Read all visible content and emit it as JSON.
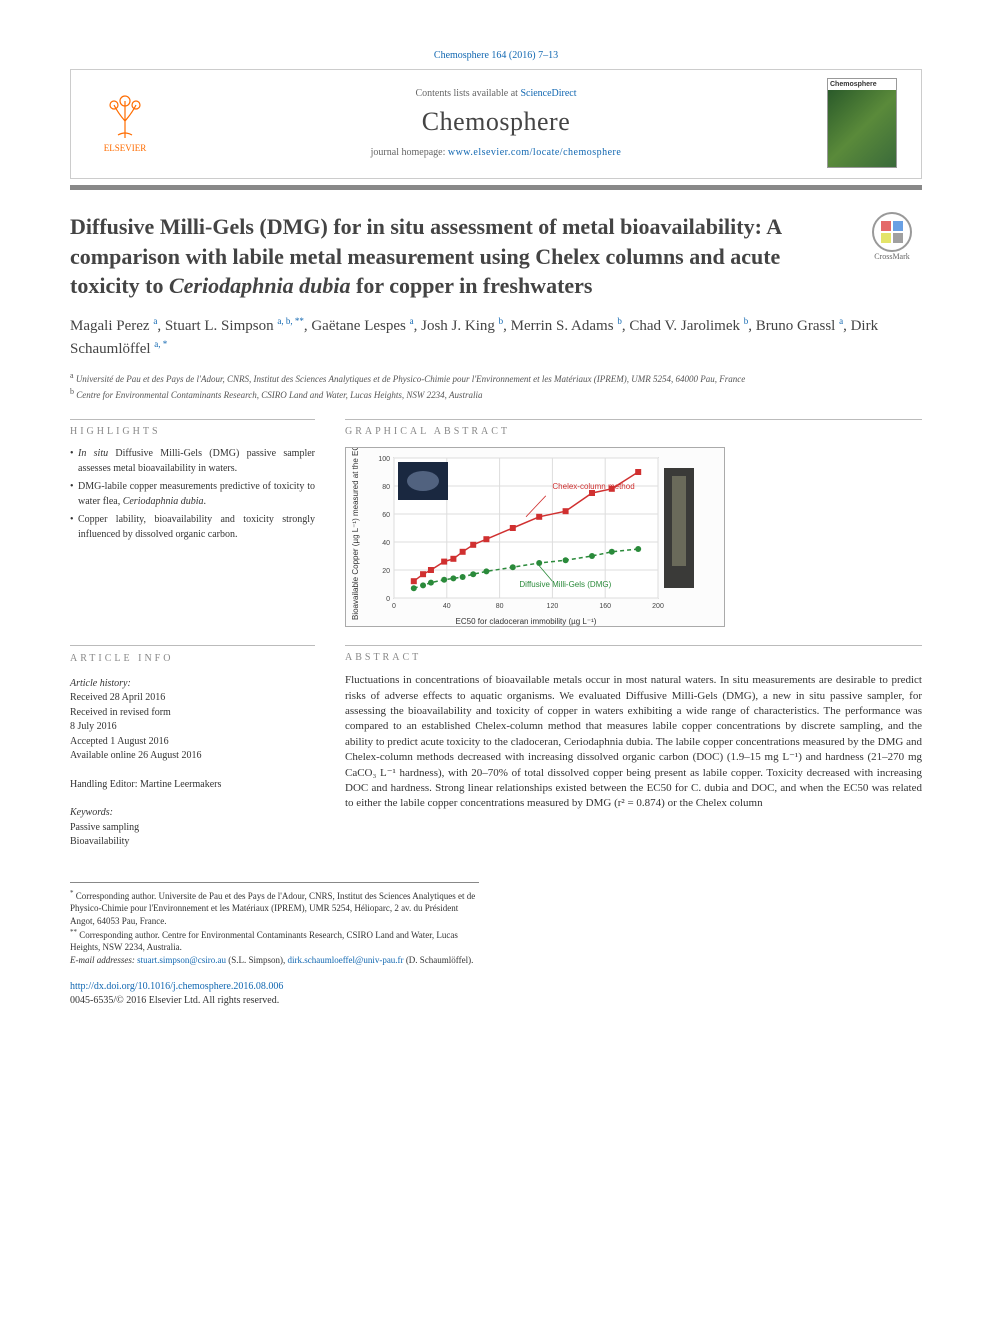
{
  "citation": {
    "journal": "Chemosphere",
    "vol_pages": "164 (2016) 7–13"
  },
  "header": {
    "contents_prefix": "Contents lists available at ",
    "contents_link": "ScienceDirect",
    "journal": "Chemosphere",
    "homepage_prefix": "journal homepage: ",
    "homepage_link": "www.elsevier.com/locate/chemosphere",
    "publisher": "ELSEVIER",
    "cover_title": "Chemosphere"
  },
  "title": "Diffusive Milli-Gels (DMG) for in situ assessment of metal bioavailability: A comparison with labile metal measurement using Chelex columns and acute toxicity to Ceriodaphnia dubia for copper in freshwaters",
  "crossmark": "CrossMark",
  "authors": [
    {
      "name": "Magali Perez",
      "sup": "a"
    },
    {
      "name": "Stuart L. Simpson",
      "sup": "a, b, **"
    },
    {
      "name": "Gaëtane Lespes",
      "sup": "a"
    },
    {
      "name": "Josh J. King",
      "sup": "b"
    },
    {
      "name": "Merrin S. Adams",
      "sup": "b"
    },
    {
      "name": "Chad V. Jarolimek",
      "sup": "b"
    },
    {
      "name": "Bruno Grassl",
      "sup": "a"
    },
    {
      "name": "Dirk Schaumlöffel",
      "sup": "a, *"
    }
  ],
  "affiliations": [
    {
      "sup": "a",
      "text": "Université de Pau et des Pays de l'Adour, CNRS, Institut des Sciences Analytiques et de Physico-Chimie pour l'Environnement et les Matériaux (IPREM), UMR 5254, 64000 Pau, France"
    },
    {
      "sup": "b",
      "text": "Centre for Environmental Contaminants Research, CSIRO Land and Water, Lucas Heights, NSW 2234, Australia"
    }
  ],
  "highlights": {
    "label": "HIGHLIGHTS",
    "items": [
      "In situ Diffusive Milli-Gels (DMG) passive sampler assesses metal bioavailability in waters.",
      "DMG-labile copper measurements predictive of toxicity to water flea, Ceriodaphnia dubia.",
      "Copper lability, bioavailability and toxicity strongly influenced by dissolved organic carbon."
    ]
  },
  "graphical_abstract": {
    "label": "GRAPHICAL ABSTRACT",
    "chart": {
      "type": "scatter",
      "background_color": "#fcfcfc",
      "plot_bg": "#ffffff",
      "border_color": "#aaaaaa",
      "grid_color": "#dddddd",
      "xlabel": "EC50 for cladoceran immobility (µg L⁻¹)",
      "ylabel": "Bioavailable Copper (µg L⁻¹) measured at the EC50",
      "label_fontsize": 8,
      "tick_fontsize": 7,
      "xlim": [
        0,
        200
      ],
      "xtick_step": 40,
      "ylim": [
        0,
        100
      ],
      "ytick_step": 20,
      "series": [
        {
          "name": "Chelex-column method",
          "label_color": "#d03030",
          "marker": "square",
          "marker_color": "#d03030",
          "marker_size": 6,
          "line": "solid",
          "line_color": "#d03030",
          "line_width": 1.5,
          "points": [
            [
              15,
              12
            ],
            [
              22,
              17
            ],
            [
              28,
              20
            ],
            [
              38,
              26
            ],
            [
              45,
              28
            ],
            [
              52,
              33
            ],
            [
              60,
              38
            ],
            [
              70,
              42
            ],
            [
              90,
              50
            ],
            [
              110,
              58
            ],
            [
              130,
              62
            ],
            [
              150,
              75
            ],
            [
              165,
              78
            ],
            [
              185,
              90
            ]
          ]
        },
        {
          "name": "Diffusive Milli-Gels (DMG)",
          "label_color": "#2a8a3a",
          "marker": "circle",
          "marker_color": "#2a8a3a",
          "marker_size": 6,
          "line": "dashed",
          "line_color": "#2a8a3a",
          "line_width": 1.5,
          "points": [
            [
              15,
              7
            ],
            [
              22,
              9
            ],
            [
              28,
              11
            ],
            [
              38,
              13
            ],
            [
              45,
              14
            ],
            [
              52,
              15
            ],
            [
              60,
              17
            ],
            [
              70,
              19
            ],
            [
              90,
              22
            ],
            [
              110,
              25
            ],
            [
              130,
              27
            ],
            [
              150,
              30
            ],
            [
              165,
              33
            ],
            [
              185,
              35
            ]
          ]
        }
      ],
      "inset_images": [
        {
          "pos": "top-left",
          "desc": "cladoceran-photo",
          "bg": "#1a2840"
        },
        {
          "pos": "right",
          "desc": "dmg-device-photo",
          "bg": "#3a3a38"
        }
      ]
    }
  },
  "article_info": {
    "label": "ARTICLE INFO",
    "history_label": "Article history:",
    "history": [
      "Received 28 April 2016",
      "Received in revised form",
      "8 July 2016",
      "Accepted 1 August 2016",
      "Available online 26 August 2016"
    ],
    "editor_label": "Handling Editor:",
    "editor": "Martine Leermakers",
    "keywords_label": "Keywords:",
    "keywords": [
      "Passive sampling",
      "Bioavailability"
    ]
  },
  "abstract": {
    "label": "ABSTRACT",
    "text": "Fluctuations in concentrations of bioavailable metals occur in most natural waters. In situ measurements are desirable to predict risks of adverse effects to aquatic organisms. We evaluated Diffusive Milli-Gels (DMG), a new in situ passive sampler, for assessing the bioavailability and toxicity of copper in waters exhibiting a wide range of characteristics. The performance was compared to an established Chelex-column method that measures labile copper concentrations by discrete sampling, and the ability to predict acute toxicity to the cladoceran, Ceriodaphnia dubia. The labile copper concentrations measured by the DMG and Chelex-column methods decreased with increasing dissolved organic carbon (DOC) (1.9–15 mg L⁻¹) and hardness (21–270 mg CaCO₃ L⁻¹ hardness), with 20–70% of total dissolved copper being present as labile copper. Toxicity decreased with increasing DOC and hardness. Strong linear relationships existed between the EC50 for C. dubia and DOC, and when the EC50 was related to either the labile copper concentrations measured by DMG (r² = 0.874) or the Chelex column"
  },
  "footnotes": {
    "corr1": {
      "mark": "*",
      "text": "Corresponding author. Universite de Pau et des Pays de l'Adour, CNRS, Institut des Sciences Analytiques et de Physico-Chimie pour l'Environnement et les Matériaux (IPREM), UMR 5254, Hélioparc, 2 av. du Président Angot, 64053 Pau, France."
    },
    "corr2": {
      "mark": "**",
      "text": "Corresponding author. Centre for Environmental Contaminants Research, CSIRO Land and Water, Lucas Heights, NSW 2234, Australia."
    },
    "email_label": "E-mail addresses:",
    "emails": [
      {
        "addr": "stuart.simpson@csiro.au",
        "who": "(S.L. Simpson)"
      },
      {
        "addr": "dirk.schaumloeffel@univ-pau.fr",
        "who": "(D. Schaumlöffel)"
      }
    ]
  },
  "doi": {
    "url": "http://dx.doi.org/10.1016/j.chemosphere.2016.08.006",
    "issn_copy": "0045-6535/© 2016 Elsevier Ltd. All rights reserved."
  }
}
